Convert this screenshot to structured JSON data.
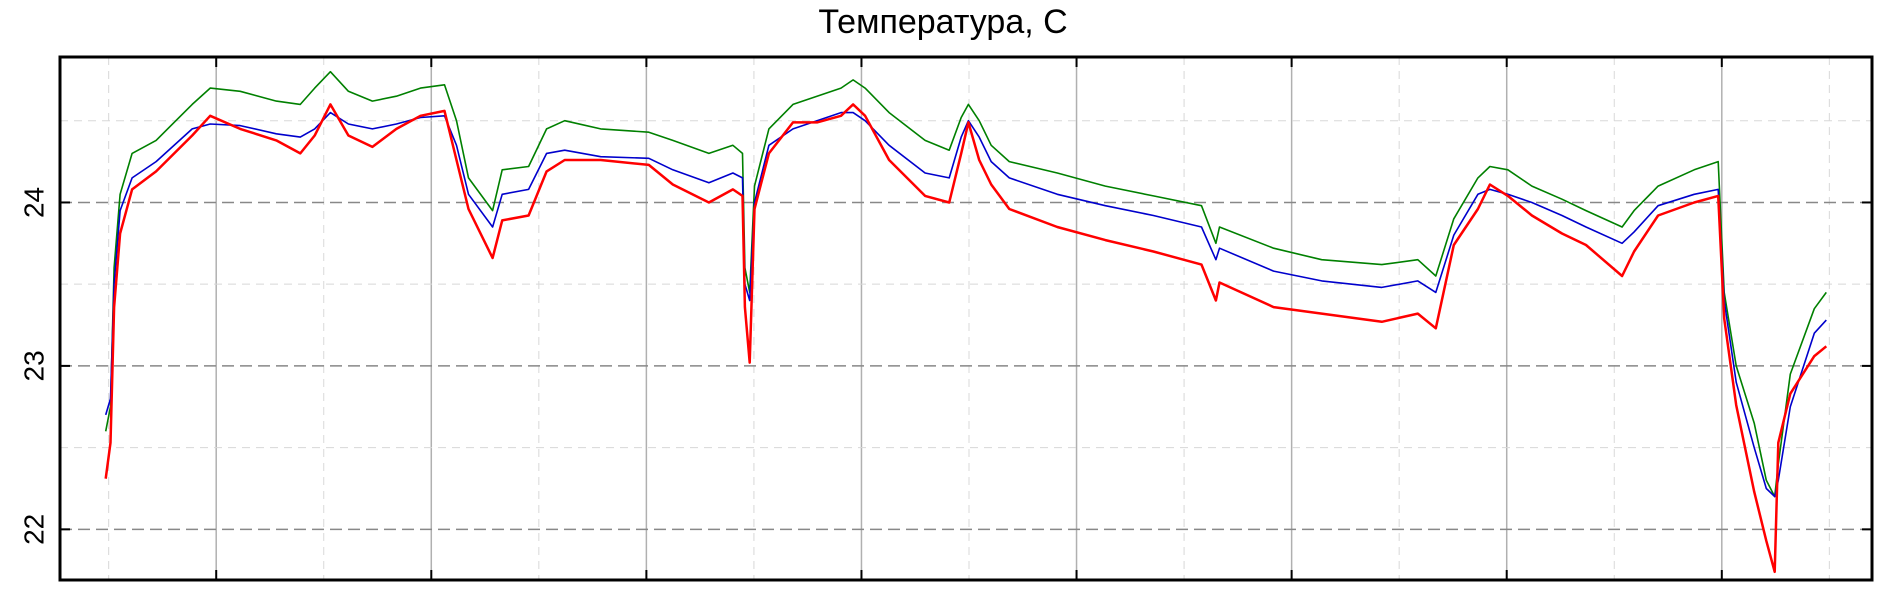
{
  "chart_data": {
    "type": "line",
    "title": "Температура, С",
    "x": [
      88,
      92,
      95,
      100,
      110,
      130,
      160,
      175,
      200,
      230,
      250,
      262,
      275,
      290,
      310,
      330,
      350,
      370,
      380,
      390,
      410,
      418,
      440,
      455,
      470,
      500,
      540,
      560,
      590,
      610,
      618,
      620,
      624,
      628,
      640,
      660,
      680,
      700,
      710,
      720,
      740,
      770,
      790,
      800,
      806,
      815,
      825,
      840,
      880,
      920,
      960,
      1000,
      1012,
      1015,
      1060,
      1100,
      1150,
      1180,
      1195,
      1210,
      1230,
      1240,
      1255,
      1275,
      1300,
      1320,
      1350,
      1360,
      1380,
      1410,
      1430,
      1435,
      1445,
      1460,
      1470,
      1477,
      1480,
      1490,
      1510,
      1520
    ],
    "series": [
      {
        "color": "#008000",
        "values": [
          22.6,
          22.75,
          23.6,
          24.05,
          24.3,
          24.38,
          24.6,
          24.7,
          24.68,
          24.62,
          24.6,
          24.7,
          24.8,
          24.68,
          24.62,
          24.65,
          24.7,
          24.72,
          24.5,
          24.15,
          23.95,
          24.2,
          24.22,
          24.45,
          24.5,
          24.45,
          24.43,
          24.38,
          24.3,
          24.35,
          24.3,
          23.6,
          23.45,
          24.1,
          24.45,
          24.6,
          24.65,
          24.7,
          24.75,
          24.7,
          24.55,
          24.38,
          24.32,
          24.52,
          24.6,
          24.5,
          24.35,
          24.25,
          24.18,
          24.1,
          24.04,
          23.98,
          23.75,
          23.85,
          23.72,
          23.65,
          23.62,
          23.65,
          23.55,
          23.9,
          24.15,
          24.22,
          24.2,
          24.1,
          24.02,
          23.95,
          23.85,
          23.95,
          24.1,
          24.2,
          24.25,
          23.45,
          23.0,
          22.65,
          22.3,
          22.2,
          22.4,
          22.95,
          23.35,
          23.45
        ]
      },
      {
        "color": "#0000cc",
        "values": [
          22.7,
          22.8,
          23.5,
          23.95,
          24.15,
          24.25,
          24.45,
          24.48,
          24.47,
          24.42,
          24.4,
          24.45,
          24.55,
          24.48,
          24.45,
          24.48,
          24.52,
          24.53,
          24.35,
          24.05,
          23.85,
          24.05,
          24.08,
          24.3,
          24.32,
          24.28,
          24.27,
          24.2,
          24.12,
          24.18,
          24.15,
          23.5,
          23.4,
          24.0,
          24.35,
          24.45,
          24.5,
          24.55,
          24.55,
          24.5,
          24.35,
          24.18,
          24.15,
          24.4,
          24.5,
          24.4,
          24.25,
          24.15,
          24.05,
          23.98,
          23.92,
          23.85,
          23.65,
          23.72,
          23.58,
          23.52,
          23.48,
          23.52,
          23.45,
          23.8,
          24.05,
          24.08,
          24.05,
          24.0,
          23.92,
          23.85,
          23.75,
          23.82,
          23.98,
          24.05,
          24.08,
          23.4,
          22.9,
          22.5,
          22.25,
          22.2,
          22.3,
          22.75,
          23.2,
          23.28
        ]
      },
      {
        "color": "#ff0000",
        "values": [
          22.31,
          22.53,
          23.36,
          23.81,
          24.08,
          24.19,
          24.41,
          24.53,
          24.45,
          24.38,
          24.3,
          24.41,
          24.6,
          24.41,
          24.34,
          24.45,
          24.53,
          24.56,
          24.26,
          23.96,
          23.66,
          23.89,
          23.92,
          24.19,
          24.26,
          24.26,
          24.23,
          24.11,
          24.0,
          24.08,
          24.04,
          23.36,
          23.02,
          23.96,
          24.3,
          24.49,
          24.49,
          24.53,
          24.6,
          24.53,
          24.26,
          24.04,
          24.0,
          24.3,
          24.49,
          24.26,
          24.11,
          23.96,
          23.85,
          23.77,
          23.7,
          23.62,
          23.4,
          23.51,
          23.36,
          23.32,
          23.27,
          23.32,
          23.23,
          23.74,
          23.96,
          24.11,
          24.04,
          23.92,
          23.81,
          23.74,
          23.55,
          23.7,
          23.92,
          24.0,
          24.04,
          23.29,
          22.76,
          22.23,
          21.93,
          21.74,
          22.53,
          22.83,
          23.06,
          23.12
        ]
      }
    ],
    "xlim": [
      50,
      1558
    ],
    "xticks": [
      90.5,
      180,
      269.5,
      359,
      448.5,
      538,
      627.5,
      717,
      806.5,
      896,
      985.5,
      1075,
      1164.5,
      1254,
      1343.5,
      1433,
      1522.5
    ],
    "ylim": [
      21.69,
      24.89
    ],
    "yticks": [
      22,
      23,
      24
    ],
    "grid": true
  }
}
